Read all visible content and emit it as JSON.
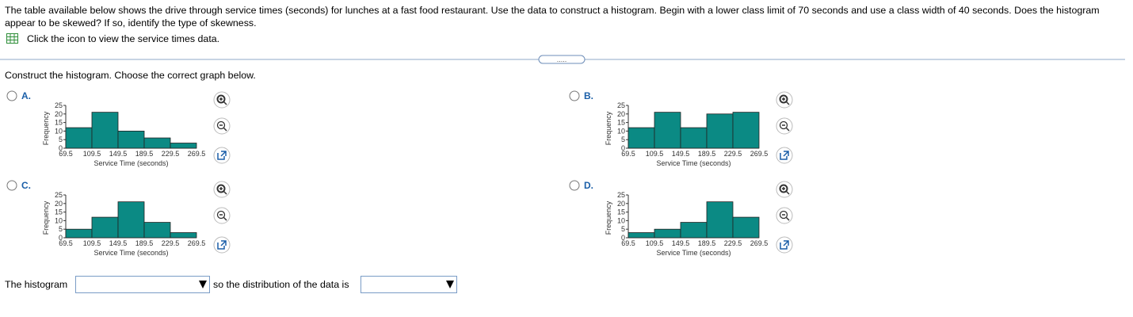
{
  "question": "The table available below shows the drive through service times (seconds) for lunches at a fast food restaurant. Use the data to construct a histogram. Begin with a lower class limit of 70 seconds and use a class width of 40 seconds. Does the histogram appear to be skewed? If so, identify the type of skewness.",
  "data_link": "Click the icon to view the service times data.",
  "prompt": "Construct the histogram. Choose the correct graph below.",
  "options": [
    {
      "label": "A.",
      "histogram": {
        "type": "histogram",
        "xlabel": "Service Time (seconds)",
        "ylabel": "Frequency",
        "bins": [
          69.5,
          109.5,
          149.5,
          189.5,
          229.5,
          269.5
        ],
        "counts": [
          12,
          21,
          10,
          6,
          3
        ],
        "ylim": [
          0,
          25
        ],
        "yticks": [
          0,
          5,
          10,
          15,
          20,
          25
        ],
        "color": "#0b8a84"
      }
    },
    {
      "label": "B.",
      "histogram": {
        "type": "histogram",
        "xlabel": "Service Time (seconds)",
        "ylabel": "Frequency",
        "bins": [
          69.5,
          109.5,
          149.5,
          189.5,
          229.5,
          269.5
        ],
        "counts": [
          12,
          21,
          12,
          20,
          21
        ],
        "ylim": [
          0,
          25
        ],
        "yticks": [
          0,
          5,
          10,
          15,
          20,
          25
        ],
        "color": "#0b8a84"
      }
    },
    {
      "label": "C.",
      "histogram": {
        "type": "histogram",
        "xlabel": "Service Time (seconds)",
        "ylabel": "Frequency",
        "bins": [
          69.5,
          109.5,
          149.5,
          189.5,
          229.5,
          269.5
        ],
        "counts": [
          5,
          12,
          21,
          9,
          3
        ],
        "ylim": [
          0,
          25
        ],
        "yticks": [
          0,
          5,
          10,
          15,
          20,
          25
        ],
        "color": "#0b8a84"
      }
    },
    {
      "label": "D.",
      "histogram": {
        "type": "histogram",
        "xlabel": "Service Time (seconds)",
        "ylabel": "Frequency",
        "bins": [
          69.5,
          109.5,
          149.5,
          189.5,
          229.5,
          269.5
        ],
        "counts": [
          3,
          5,
          9,
          21,
          12
        ],
        "ylim": [
          0,
          25
        ],
        "yticks": [
          0,
          5,
          10,
          15,
          20,
          25
        ],
        "color": "#0b8a84"
      }
    }
  ],
  "answer": {
    "lead": "The histogram",
    "middle": "so the distribution of the data is"
  }
}
